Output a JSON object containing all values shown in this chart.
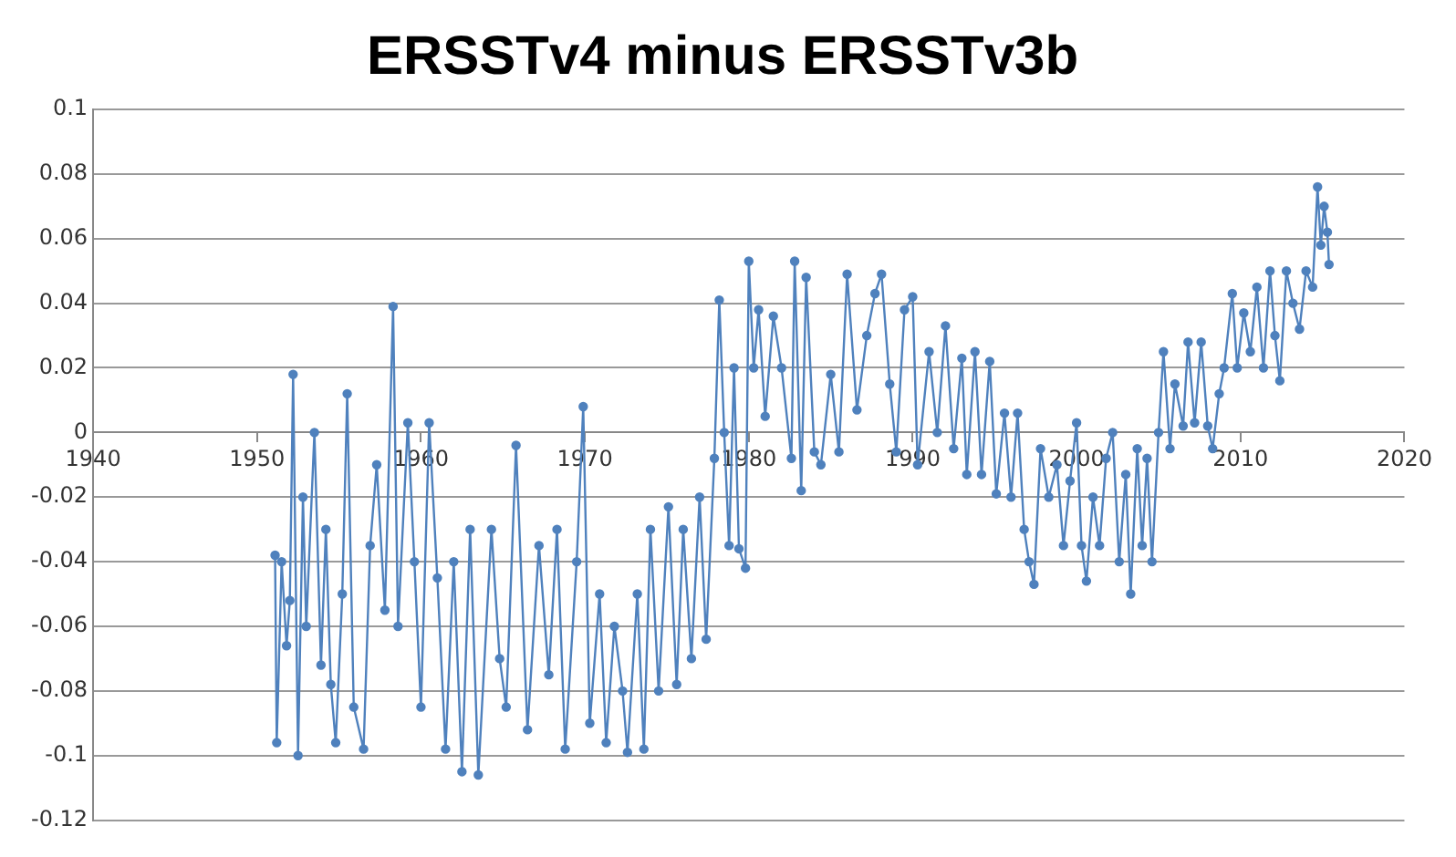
{
  "chart_data": {
    "type": "line",
    "title": "ERSSTv4 minus ERSSTv3b",
    "marker": "circle",
    "grid": "y",
    "xlim": [
      1940,
      2020
    ],
    "xticks": [
      1940,
      1950,
      1960,
      1970,
      1980,
      1990,
      2000,
      2010,
      2020
    ],
    "ylim": [
      -0.12,
      0.1
    ],
    "yticks": [
      -0.12,
      -0.1,
      -0.08,
      -0.06,
      -0.04,
      -0.02,
      0,
      0.02,
      0.04,
      0.06,
      0.08,
      0.1
    ],
    "series": [
      {
        "color": "#4f81bd",
        "x": [
          1951.1,
          1951.2,
          1951.5,
          1951.8,
          1952.0,
          1952.2,
          1952.5,
          1952.8,
          1953.0,
          1953.5,
          1953.9,
          1954.2,
          1954.5,
          1954.8,
          1955.2,
          1955.5,
          1955.9,
          1956.5,
          1956.9,
          1957.3,
          1957.8,
          1958.3,
          1958.6,
          1959.2,
          1959.6,
          1960.0,
          1960.5,
          1961.0,
          1961.5,
          1962.0,
          1962.5,
          1963.0,
          1963.5,
          1964.3,
          1964.8,
          1965.2,
          1965.8,
          1966.5,
          1967.2,
          1967.8,
          1968.3,
          1968.8,
          1969.5,
          1969.9,
          1970.3,
          1970.9,
          1971.3,
          1971.8,
          1972.3,
          1972.6,
          1973.2,
          1973.6,
          1974.0,
          1974.5,
          1975.1,
          1975.6,
          1976.0,
          1976.5,
          1977.0,
          1977.4,
          1977.9,
          1978.2,
          1978.5,
          1978.8,
          1979.1,
          1979.4,
          1979.8,
          1980.0,
          1980.3,
          1980.6,
          1981.0,
          1981.5,
          1982.0,
          1982.6,
          1982.8,
          1983.2,
          1983.5,
          1984.0,
          1984.4,
          1985.0,
          1985.5,
          1986.0,
          1986.6,
          1987.2,
          1987.7,
          1988.1,
          1988.6,
          1989.0,
          1989.5,
          1990.0,
          1990.3,
          1991.0,
          1991.5,
          1992.0,
          1992.5,
          1993.0,
          1993.3,
          1993.8,
          1994.2,
          1994.7,
          1995.1,
          1995.6,
          1996.0,
          1996.4,
          1996.8,
          1997.1,
          1997.4,
          1997.8,
          1998.3,
          1998.8,
          1999.2,
          1999.6,
          2000.0,
          2000.3,
          2000.6,
          2001.0,
          2001.4,
          2001.8,
          2002.2,
          2002.6,
          2003.0,
          2003.3,
          2003.7,
          2004.0,
          2004.3,
          2004.6,
          2005.0,
          2005.3,
          2005.7,
          2006.0,
          2006.5,
          2006.8,
          2007.2,
          2007.6,
          2008.0,
          2008.3,
          2008.7,
          2009.0,
          2009.5,
          2009.8,
          2010.2,
          2010.6,
          2011.0,
          2011.4,
          2011.8,
          2012.1,
          2012.4,
          2012.8,
          2013.2,
          2013.6,
          2014.0,
          2014.4,
          2014.7,
          2014.9,
          2015.1,
          2015.3,
          2015.4
        ],
        "values": [
          -0.038,
          -0.096,
          -0.04,
          -0.066,
          -0.052,
          0.018,
          -0.1,
          -0.02,
          -0.06,
          0.0,
          -0.072,
          -0.03,
          -0.078,
          -0.096,
          -0.05,
          0.012,
          -0.085,
          -0.098,
          -0.035,
          -0.01,
          -0.055,
          0.039,
          -0.06,
          0.003,
          -0.04,
          -0.085,
          0.003,
          -0.045,
          -0.098,
          -0.04,
          -0.105,
          -0.03,
          -0.106,
          -0.03,
          -0.07,
          -0.085,
          -0.004,
          -0.092,
          -0.035,
          -0.075,
          -0.03,
          -0.098,
          -0.04,
          0.008,
          -0.09,
          -0.05,
          -0.096,
          -0.06,
          -0.08,
          -0.099,
          -0.05,
          -0.098,
          -0.03,
          -0.08,
          -0.023,
          -0.078,
          -0.03,
          -0.07,
          -0.02,
          -0.064,
          -0.008,
          0.041,
          0.0,
          -0.035,
          0.02,
          -0.036,
          -0.042,
          0.053,
          0.02,
          0.038,
          0.005,
          0.036,
          0.02,
          -0.008,
          0.053,
          -0.018,
          0.048,
          -0.006,
          -0.01,
          0.018,
          -0.006,
          0.049,
          0.007,
          0.03,
          0.043,
          0.049,
          0.015,
          -0.006,
          0.038,
          0.042,
          -0.01,
          0.025,
          0.0,
          0.033,
          -0.005,
          0.023,
          -0.013,
          0.025,
          -0.013,
          0.022,
          -0.019,
          0.006,
          -0.02,
          0.006,
          -0.03,
          -0.04,
          -0.047,
          -0.005,
          -0.02,
          -0.01,
          -0.035,
          -0.015,
          0.003,
          -0.035,
          -0.046,
          -0.02,
          -0.035,
          -0.008,
          0.0,
          -0.04,
          -0.013,
          -0.05,
          -0.005,
          -0.035,
          -0.008,
          -0.04,
          0.0,
          0.025,
          -0.005,
          0.015,
          0.002,
          0.028,
          0.003,
          0.028,
          0.002,
          -0.005,
          0.012,
          0.02,
          0.043,
          0.02,
          0.037,
          0.025,
          0.045,
          0.02,
          0.05,
          0.03,
          0.016,
          0.05,
          0.04,
          0.032,
          0.05,
          0.045,
          0.076,
          0.058,
          0.07,
          0.062,
          0.052
        ]
      }
    ]
  }
}
